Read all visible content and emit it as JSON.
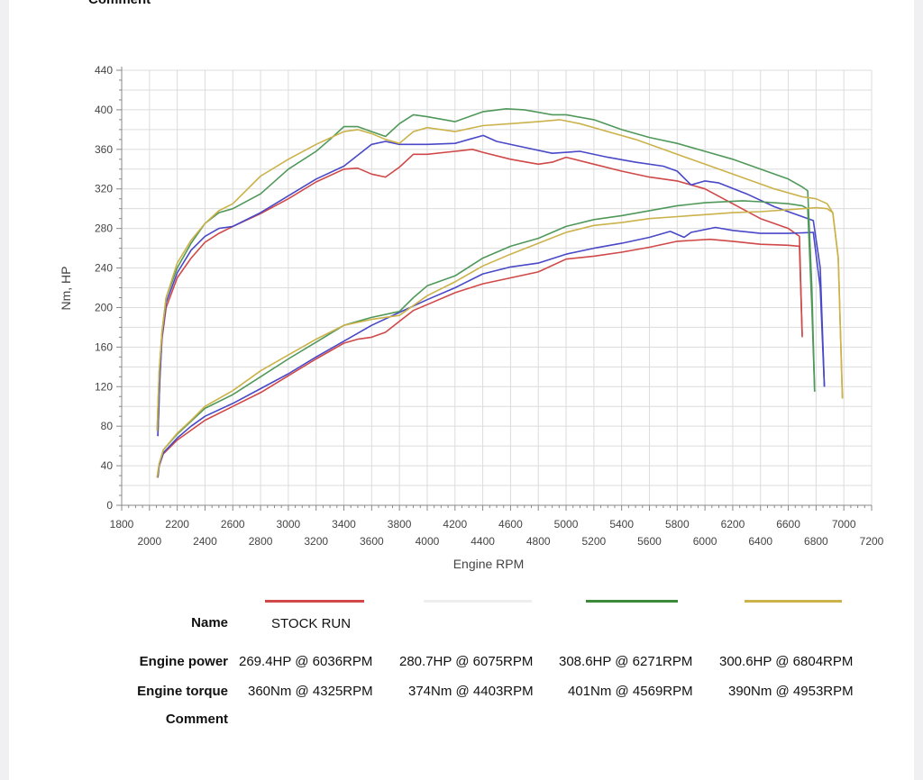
{
  "header": {
    "comment_label": "Comment"
  },
  "chart_data": {
    "type": "line",
    "xlabel": "Engine RPM",
    "ylabel": "Nm, HP",
    "xlim": [
      1800,
      7200
    ],
    "ylim": [
      0,
      440
    ],
    "x_ticks_row1": [
      "1800",
      "2200",
      "2600",
      "3000",
      "3400",
      "3800",
      "4200",
      "4600",
      "5000",
      "5400",
      "5800",
      "6200",
      "6600",
      "7000"
    ],
    "x_ticks_row2": [
      "2000",
      "2400",
      "2800",
      "3200",
      "3600",
      "4000",
      "4400",
      "4800",
      "5200",
      "5600",
      "6000",
      "6400",
      "6800",
      "7200"
    ],
    "y_ticks": [
      "0",
      "40",
      "80",
      "120",
      "160",
      "200",
      "240",
      "280",
      "320",
      "360",
      "400",
      "440"
    ],
    "grid": true,
    "series": [
      {
        "name": "STOCK RUN",
        "color": "#d04848",
        "kind": "torque",
        "x": [
          2060,
          2075,
          2090,
          2120,
          2200,
          2300,
          2400,
          2500,
          2600,
          2800,
          3000,
          3200,
          3400,
          3500,
          3600,
          3700,
          3800,
          3900,
          4000,
          4200,
          4325,
          4400,
          4600,
          4800,
          4900,
          5000,
          5200,
          5400,
          5600,
          5800,
          6000,
          6200,
          6400,
          6600,
          6680,
          6700
        ],
        "y": [
          70,
          130,
          168,
          200,
          230,
          250,
          266,
          275,
          282,
          295,
          310,
          327,
          340,
          341,
          335,
          332,
          342,
          355,
          355,
          358,
          360,
          357,
          350,
          345,
          347,
          352,
          345,
          338,
          332,
          328,
          320,
          305,
          290,
          280,
          272,
          170
        ]
      },
      {
        "color": "#4848c8",
        "kind": "torque",
        "x": [
          2060,
          2075,
          2090,
          2120,
          2200,
          2300,
          2400,
          2500,
          2600,
          2800,
          3000,
          3200,
          3400,
          3600,
          3700,
          3800,
          4000,
          4200,
          4300,
          4403,
          4500,
          4700,
          4900,
          5100,
          5300,
          5500,
          5700,
          5800,
          5900,
          6000,
          6100,
          6300,
          6500,
          6700,
          6780,
          6830,
          6860
        ],
        "y": [
          70,
          130,
          170,
          205,
          235,
          258,
          272,
          280,
          282,
          296,
          313,
          330,
          343,
          365,
          368,
          365,
          365,
          366,
          370,
          374,
          368,
          362,
          356,
          358,
          352,
          347,
          343,
          338,
          324,
          328,
          326,
          315,
          302,
          292,
          288,
          240,
          120
        ]
      },
      {
        "color": "#50985a",
        "kind": "torque",
        "x": [
          2055,
          2070,
          2090,
          2120,
          2200,
          2300,
          2400,
          2500,
          2600,
          2800,
          3000,
          3200,
          3300,
          3400,
          3500,
          3600,
          3700,
          3800,
          3900,
          4000,
          4200,
          4400,
          4569,
          4700,
          4900,
          5000,
          5200,
          5400,
          5600,
          5800,
          6000,
          6200,
          6400,
          6600,
          6700,
          6740,
          6770,
          6790
        ],
        "y": [
          75,
          135,
          175,
          210,
          240,
          265,
          285,
          296,
          300,
          315,
          340,
          358,
          370,
          383,
          383,
          378,
          373,
          386,
          395,
          393,
          388,
          398,
          401,
          400,
          395,
          395,
          390,
          380,
          372,
          366,
          358,
          350,
          340,
          330,
          322,
          318,
          220,
          115
        ]
      },
      {
        "color": "#cbb24a",
        "kind": "torque",
        "x": [
          2055,
          2070,
          2090,
          2120,
          2200,
          2300,
          2400,
          2500,
          2600,
          2800,
          3000,
          3200,
          3400,
          3500,
          3600,
          3700,
          3800,
          3900,
          4000,
          4200,
          4400,
          4600,
          4800,
          4953,
          5100,
          5300,
          5500,
          5700,
          5900,
          6100,
          6300,
          6500,
          6700,
          6800,
          6880,
          6920,
          6960,
          6990
        ],
        "y": [
          75,
          135,
          175,
          210,
          245,
          268,
          285,
          298,
          305,
          333,
          350,
          365,
          378,
          380,
          376,
          370,
          366,
          378,
          382,
          378,
          384,
          386,
          388,
          390,
          386,
          378,
          370,
          360,
          350,
          340,
          330,
          320,
          312,
          310,
          305,
          296,
          250,
          108
        ]
      },
      {
        "color": "#d04848",
        "kind": "power",
        "x": [
          2060,
          2070,
          2100,
          2200,
          2300,
          2400,
          2600,
          2800,
          3000,
          3200,
          3400,
          3500,
          3600,
          3700,
          3800,
          3900,
          4000,
          4200,
          4400,
          4600,
          4800,
          5000,
          5200,
          5400,
          5600,
          5800,
          6036,
          6200,
          6400,
          6600,
          6680,
          6700
        ],
        "y": [
          28,
          40,
          52,
          66,
          76,
          86,
          100,
          114,
          131,
          148,
          164,
          168,
          170,
          175,
          186,
          197,
          203,
          215,
          224,
          230,
          236,
          249,
          252,
          256,
          261,
          267,
          269,
          267,
          264,
          263,
          262,
          172
        ]
      },
      {
        "color": "#4848c8",
        "kind": "power",
        "x": [
          2060,
          2070,
          2100,
          2200,
          2300,
          2400,
          2600,
          2800,
          3000,
          3200,
          3400,
          3600,
          3800,
          4000,
          4200,
          4400,
          4600,
          4800,
          5000,
          5200,
          5400,
          5600,
          5750,
          5850,
          5900,
          6075,
          6200,
          6400,
          6600,
          6780,
          6830,
          6860
        ],
        "y": [
          28,
          40,
          53,
          68,
          80,
          90,
          103,
          118,
          133,
          150,
          166,
          182,
          195,
          208,
          220,
          234,
          241,
          245,
          254,
          260,
          265,
          271,
          277,
          271,
          276,
          281,
          278,
          275,
          275,
          276,
          220,
          120
        ]
      },
      {
        "color": "#50985a",
        "kind": "power",
        "x": [
          2055,
          2070,
          2100,
          2200,
          2300,
          2400,
          2600,
          2800,
          3000,
          3200,
          3400,
          3600,
          3800,
          3900,
          4000,
          4200,
          4400,
          4600,
          4800,
          5000,
          5200,
          5400,
          5600,
          5800,
          6000,
          6271,
          6400,
          6600,
          6700,
          6740,
          6770,
          6790
        ],
        "y": [
          28,
          42,
          56,
          72,
          85,
          98,
          112,
          130,
          148,
          165,
          182,
          190,
          196,
          210,
          222,
          232,
          250,
          262,
          270,
          282,
          289,
          293,
          298,
          303,
          306,
          308,
          307,
          305,
          303,
          300,
          200,
          115
        ]
      },
      {
        "color": "#cbb24a",
        "kind": "power",
        "x": [
          2055,
          2070,
          2100,
          2200,
          2300,
          2400,
          2600,
          2800,
          3000,
          3200,
          3400,
          3600,
          3800,
          4000,
          4200,
          4400,
          4600,
          4800,
          5000,
          5200,
          5400,
          5600,
          5800,
          6000,
          6200,
          6400,
          6600,
          6804,
          6880,
          6920,
          6960,
          6990
        ],
        "y": [
          28,
          42,
          56,
          73,
          86,
          100,
          116,
          136,
          152,
          168,
          182,
          188,
          192,
          212,
          226,
          242,
          254,
          265,
          276,
          283,
          286,
          290,
          292,
          294,
          296,
          297,
          299,
          301,
          300,
          296,
          250,
          108
        ]
      }
    ]
  },
  "legend": {
    "name_label": "Name",
    "engine_power_label": "Engine power",
    "engine_torque_label": "Engine torque",
    "comment_label": "Comment",
    "runs": [
      {
        "name": "STOCK RUN",
        "color": "#d04848",
        "power": "269.4HP @  6036RPM",
        "torque": "360Nm @ 4325RPM"
      },
      {
        "name": "",
        "color": "#eaeaea",
        "power": "280.7HP @  6075RPM",
        "torque": "374Nm @ 4403RPM"
      },
      {
        "name": "",
        "color": "#3a8a3a",
        "power": "308.6HP @  6271RPM",
        "torque": "401Nm @ 4569RPM"
      },
      {
        "name": "",
        "color": "#cbb24a",
        "power": "300.6HP @  6804RPM",
        "torque": "390Nm @ 4953RPM"
      }
    ]
  }
}
